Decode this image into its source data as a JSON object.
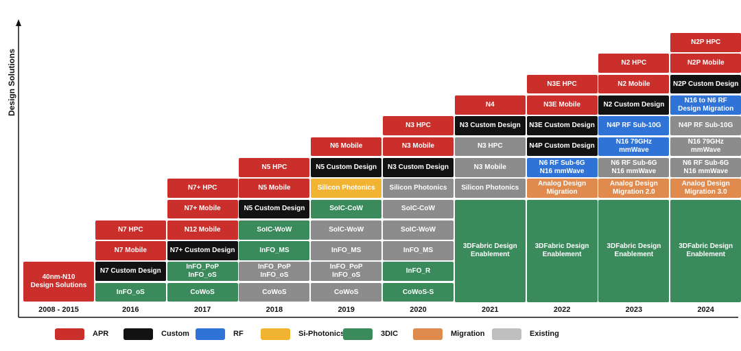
{
  "diagram": {
    "y_axis_label": "Design Solutions",
    "years": [
      "2008 - 2015",
      "2016",
      "2017",
      "2018",
      "2019",
      "2020",
      "2021",
      "2022",
      "2023",
      "2024"
    ],
    "legend": [
      {
        "label": "APR",
        "color": "#cb2f2c"
      },
      {
        "label": "Custom",
        "color": "#121212"
      },
      {
        "label": "RF",
        "color": "#2f73d6"
      },
      {
        "label": "Si-Photonics",
        "color": "#f0b432"
      },
      {
        "label": "3DIC",
        "color": "#3a8a5c"
      },
      {
        "label": "Migration",
        "color": "#e08a4e"
      },
      {
        "label": "Existing",
        "color": "#bfbfbf"
      }
    ],
    "columns": [
      {
        "year": "2008 - 2015",
        "blocks": [
          {
            "text": "40nm-N10\nDesign Solutions",
            "category": "apr"
          }
        ]
      },
      {
        "year": "2016",
        "blocks": [
          {
            "text": "InFO_oS",
            "category": "3dic"
          },
          {
            "text": "N7 Custom Design",
            "category": "custom"
          },
          {
            "text": "N7 Mobile",
            "category": "apr"
          },
          {
            "text": "N7 HPC",
            "category": "apr"
          }
        ]
      },
      {
        "year": "2017",
        "blocks": [
          {
            "text": "CoWoS",
            "category": "3dic"
          },
          {
            "text": "InFO_PoP\nInFO_oS",
            "category": "3dic"
          },
          {
            "text": "N7+ Custom Design",
            "category": "custom"
          },
          {
            "text": "N12 Mobile",
            "category": "apr"
          },
          {
            "text": "N7+ Mobile",
            "category": "apr"
          },
          {
            "text": "N7+ HPC",
            "category": "apr"
          }
        ]
      },
      {
        "year": "2018",
        "blocks": [
          {
            "text": "CoWoS",
            "category": "existing"
          },
          {
            "text": "InFO_PoP\nInFO_oS",
            "category": "existing"
          },
          {
            "text": "InFO_MS",
            "category": "3dic"
          },
          {
            "text": "SoIC-WoW",
            "category": "3dic"
          },
          {
            "text": "N5 Custom Design",
            "category": "custom"
          },
          {
            "text": "N5 Mobile",
            "category": "apr"
          },
          {
            "text": "N5 HPC",
            "category": "apr"
          }
        ]
      },
      {
        "year": "2019",
        "blocks": [
          {
            "text": "CoWoS",
            "category": "existing"
          },
          {
            "text": "InFO_PoP\nInFO_oS",
            "category": "existing"
          },
          {
            "text": "InFO_MS",
            "category": "existing"
          },
          {
            "text": "SoIC-WoW",
            "category": "existing"
          },
          {
            "text": "SoIC-CoW",
            "category": "3dic"
          },
          {
            "text": "Silicon Photonics",
            "category": "siph"
          },
          {
            "text": "N5 Custom Design",
            "category": "custom"
          },
          {
            "text": "N6 Mobile",
            "category": "apr"
          }
        ]
      },
      {
        "year": "2020",
        "blocks": [
          {
            "text": "CoWoS-S",
            "category": "3dic"
          },
          {
            "text": "InFO_R",
            "category": "3dic"
          },
          {
            "text": "InFO_MS",
            "category": "existing"
          },
          {
            "text": "SoIC-WoW",
            "category": "existing"
          },
          {
            "text": "SoIC-CoW",
            "category": "existing"
          },
          {
            "text": "Silicon Photonics",
            "category": "existing"
          },
          {
            "text": "N3 Custom Design",
            "category": "custom"
          },
          {
            "text": "N3 Mobile",
            "category": "apr"
          },
          {
            "text": "N3 HPC",
            "category": "apr"
          }
        ]
      },
      {
        "year": "2021",
        "blocks": [
          {
            "text": "3DFabric Design\nEnablement",
            "category": "3dic"
          },
          {
            "text": "Silicon Photonics",
            "category": "existing"
          },
          {
            "text": "N3 Mobile",
            "category": "existing"
          },
          {
            "text": "N3 HPC",
            "category": "existing"
          },
          {
            "text": "N3 Custom Design",
            "category": "custom"
          },
          {
            "text": "N4",
            "category": "apr"
          }
        ]
      },
      {
        "year": "2022",
        "blocks": [
          {
            "text": "3DFabric Design\nEnablement",
            "category": "3dic"
          },
          {
            "text": "Analog Design\nMigration",
            "category": "migration"
          },
          {
            "text": "N6 RF Sub-6G\nN16 mmWave",
            "category": "rf"
          },
          {
            "text": "N4P Custom Design",
            "category": "custom"
          },
          {
            "text": "N3E Custom Design",
            "category": "custom"
          },
          {
            "text": "N3E Mobile",
            "category": "apr"
          },
          {
            "text": "N3E HPC",
            "category": "apr"
          }
        ]
      },
      {
        "year": "2023",
        "blocks": [
          {
            "text": "3DFabric Design\nEnablement",
            "category": "3dic"
          },
          {
            "text": "Analog Design\nMigration 2.0",
            "category": "migration"
          },
          {
            "text": "N6 RF Sub-6G\nN16 mmWave",
            "category": "existing"
          },
          {
            "text": "N16 79GHz\nmmWave",
            "category": "rf"
          },
          {
            "text": "N4P RF Sub-10G",
            "category": "rf"
          },
          {
            "text": "N2 Custom Design",
            "category": "custom"
          },
          {
            "text": "N2 Mobile",
            "category": "apr"
          },
          {
            "text": "N2 HPC",
            "category": "apr"
          }
        ]
      },
      {
        "year": "2024",
        "blocks": [
          {
            "text": "3DFabric Design\nEnablement",
            "category": "3dic"
          },
          {
            "text": "Analog Design\nMigration 3.0",
            "category": "migration"
          },
          {
            "text": "N6 RF Sub-6G\nN16 mmWave",
            "category": "existing"
          },
          {
            "text": "N16 79GHz\nmmWave",
            "category": "existing"
          },
          {
            "text": "N4P RF Sub-10G",
            "category": "existing"
          },
          {
            "text": "N16 to N6 RF\nDesign Migration",
            "category": "rf"
          },
          {
            "text": "N2P Custom Design",
            "category": "custom"
          },
          {
            "text": "N2P Mobile",
            "category": "apr"
          },
          {
            "text": "N2P HPC",
            "category": "apr"
          }
        ]
      }
    ]
  }
}
